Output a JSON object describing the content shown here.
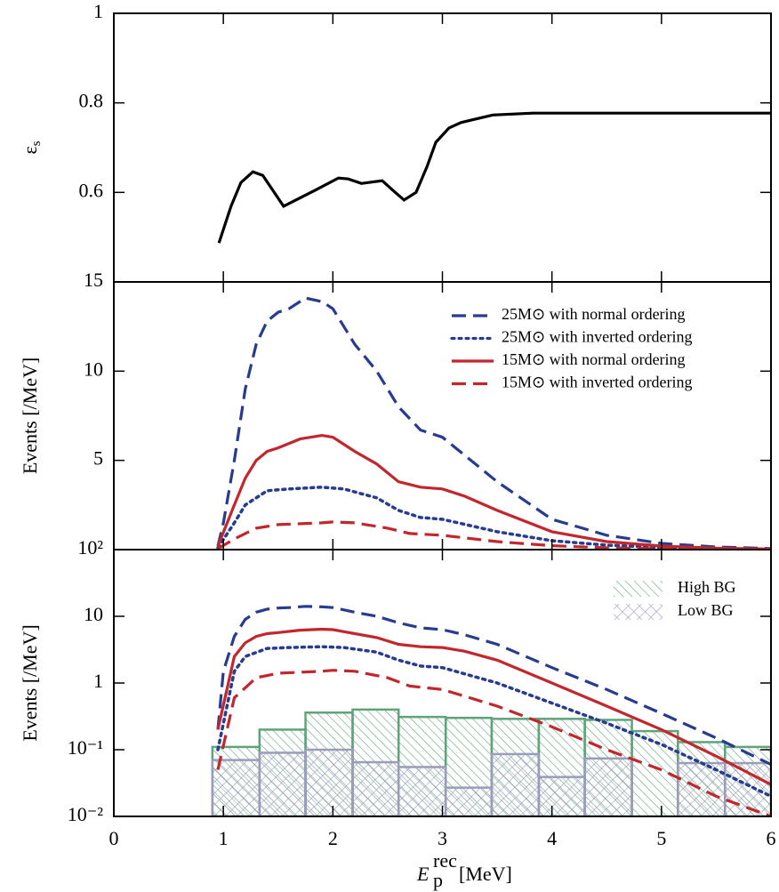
{
  "chart_data": [
    {
      "type": "line",
      "ylabel": {
        "main": "ε",
        "sub": "s"
      },
      "xlim": [
        0,
        6
      ],
      "xticks": [
        0,
        1,
        2,
        3,
        4,
        5,
        6
      ],
      "xticklabels": false,
      "ylim": [
        0.4,
        1
      ],
      "yticks": [
        0.6,
        0.8,
        1
      ],
      "series": [
        {
          "color": "#000000",
          "dash": "solid",
          "x": [
            0.96,
            1.07,
            1.16,
            1.27,
            1.36,
            1.55,
            1.84,
            2.05,
            2.14,
            2.26,
            2.45,
            2.56,
            2.65,
            2.76,
            2.86,
            2.94,
            3.06,
            3.17,
            3.27,
            3.46,
            3.83,
            4.0,
            4.5,
            5.0,
            5.5,
            6.0
          ],
          "values": [
            0.487,
            0.569,
            0.622,
            0.646,
            0.638,
            0.569,
            0.605,
            0.632,
            0.63,
            0.62,
            0.626,
            0.602,
            0.583,
            0.6,
            0.658,
            0.712,
            0.744,
            0.756,
            0.762,
            0.773,
            0.777,
            0.777,
            0.777,
            0.777,
            0.777,
            0.777
          ]
        }
      ]
    },
    {
      "type": "line",
      "ylabel": {
        "main": "Events [/MeV]"
      },
      "xlim": [
        0,
        6
      ],
      "xticks": [
        0,
        1,
        2,
        3,
        4,
        5,
        6
      ],
      "xticklabels": false,
      "ylim": [
        0,
        15
      ],
      "yticks": [
        5,
        10,
        15
      ],
      "legend": "upper right",
      "series": [
        {
          "name": "25M⊙ with normal ordering",
          "color": "#283c8f",
          "dash": "dashed",
          "x": [
            0.95,
            1.0,
            1.1,
            1.2,
            1.3,
            1.4,
            1.5,
            1.6,
            1.75,
            1.9,
            2.0,
            2.2,
            2.4,
            2.6,
            2.8,
            3.0,
            3.2,
            3.5,
            4.0,
            4.5,
            5.0,
            5.5,
            6.0
          ],
          "values": [
            0.2,
            1.5,
            5,
            9,
            11.5,
            12.8,
            13.3,
            13.5,
            14.1,
            13.9,
            13.5,
            11.5,
            10,
            8,
            6.7,
            6.3,
            5.3,
            3.8,
            1.7,
            0.8,
            0.35,
            0.15,
            0.06
          ]
        },
        {
          "name": "25M⊙ with inverted ordering",
          "color": "#283c8f",
          "dash": "dotted",
          "x": [
            0.95,
            1.1,
            1.2,
            1.4,
            1.6,
            1.9,
            2.1,
            2.4,
            2.6,
            2.8,
            3.0,
            3.5,
            4.0,
            4.5,
            5.0,
            5.5,
            6.0
          ],
          "values": [
            0.1,
            1.5,
            2.5,
            3.3,
            3.4,
            3.5,
            3.4,
            2.9,
            2.2,
            1.8,
            1.7,
            1.0,
            0.5,
            0.25,
            0.12,
            0.05,
            0.02
          ]
        },
        {
          "name": "15M⊙ with normal ordering",
          "color": "#c1272d",
          "dash": "solid",
          "x": [
            0.95,
            1.1,
            1.2,
            1.3,
            1.4,
            1.5,
            1.7,
            1.9,
            2.0,
            2.2,
            2.4,
            2.6,
            2.8,
            3.0,
            3.2,
            3.5,
            4.0,
            4.5,
            5.0,
            5.5,
            6.0
          ],
          "values": [
            0.2,
            2.5,
            4,
            5,
            5.5,
            5.7,
            6.2,
            6.4,
            6.3,
            5.5,
            4.8,
            3.8,
            3.5,
            3.4,
            3.0,
            2.2,
            1.0,
            0.45,
            0.2,
            0.08,
            0.03
          ]
        },
        {
          "name": "15M⊙ with inverted ordering",
          "color": "#c1272d",
          "dash": "dashed",
          "x": [
            0.95,
            1.1,
            1.3,
            1.5,
            1.9,
            2.0,
            2.2,
            2.5,
            2.7,
            3.0,
            3.5,
            4.0,
            4.5,
            5.0,
            5.5,
            6.0
          ],
          "values": [
            0.05,
            0.6,
            1.2,
            1.4,
            1.5,
            1.55,
            1.5,
            1.2,
            0.9,
            0.8,
            0.45,
            0.22,
            0.1,
            0.05,
            0.02,
            0.01
          ]
        }
      ]
    },
    {
      "type": "line",
      "ylabel": {
        "main": "Events [/MeV]"
      },
      "xlabel": {
        "main": "E",
        "sub": "p",
        "sup": "rec",
        "unit": "[MeV]"
      },
      "xlim": [
        0,
        6
      ],
      "xticks": [
        0,
        1,
        2,
        3,
        4,
        5,
        6
      ],
      "xticklabels": true,
      "yscale": "log",
      "ylim": [
        0.01,
        100
      ],
      "yticks": [
        {
          "value": 0.01,
          "label": "10⁻²"
        },
        {
          "value": 0.1,
          "label": "10⁻¹"
        },
        1,
        10,
        {
          "value": 100,
          "label": "10²"
        }
      ],
      "legend": "upper right",
      "series": [
        {
          "color": "#283c8f",
          "dash": "dashed",
          "x": [
            0.95,
            1.0,
            1.1,
            1.2,
            1.3,
            1.4,
            1.5,
            1.6,
            1.75,
            1.9,
            2.0,
            2.2,
            2.4,
            2.6,
            2.8,
            3.0,
            3.2,
            3.5,
            4.0,
            4.5,
            5.0,
            5.5,
            6.0
          ],
          "values": [
            0.2,
            1.5,
            5,
            9,
            11.5,
            12.8,
            13.3,
            13.5,
            14.1,
            13.9,
            13.5,
            11.5,
            10,
            8,
            6.7,
            6.3,
            5.3,
            3.8,
            1.7,
            0.8,
            0.35,
            0.15,
            0.06
          ]
        },
        {
          "color": "#283c8f",
          "dash": "dotted",
          "x": [
            0.95,
            1.1,
            1.2,
            1.4,
            1.6,
            1.9,
            2.1,
            2.4,
            2.6,
            2.8,
            3.0,
            3.5,
            4.0,
            4.5,
            5.0,
            5.5,
            6.0
          ],
          "values": [
            0.1,
            1.5,
            2.5,
            3.3,
            3.4,
            3.5,
            3.4,
            2.9,
            2.2,
            1.8,
            1.7,
            1.0,
            0.5,
            0.25,
            0.12,
            0.05,
            0.02
          ]
        },
        {
          "color": "#c1272d",
          "dash": "solid",
          "x": [
            0.95,
            1.1,
            1.2,
            1.3,
            1.4,
            1.5,
            1.7,
            1.9,
            2.0,
            2.2,
            2.4,
            2.6,
            2.8,
            3.0,
            3.2,
            3.5,
            4.0,
            4.5,
            5.0,
            5.5,
            6.0
          ],
          "values": [
            0.2,
            2.5,
            4,
            5,
            5.5,
            5.7,
            6.2,
            6.4,
            6.3,
            5.5,
            4.8,
            3.8,
            3.5,
            3.4,
            3.0,
            2.2,
            1.0,
            0.45,
            0.2,
            0.08,
            0.03
          ]
        },
        {
          "color": "#c1272d",
          "dash": "dashed",
          "x": [
            0.95,
            1.1,
            1.3,
            1.5,
            1.9,
            2.0,
            2.2,
            2.5,
            2.7,
            3.0,
            3.5,
            4.0,
            4.5,
            5.0,
            5.5,
            6.0
          ],
          "values": [
            0.05,
            0.6,
            1.2,
            1.4,
            1.5,
            1.55,
            1.5,
            1.2,
            0.9,
            0.8,
            0.45,
            0.22,
            0.1,
            0.05,
            0.02,
            0.01
          ]
        }
      ],
      "histograms": [
        {
          "name": "High BG",
          "color": "#5fa37a",
          "hatch": "diagonal",
          "bins": [
            0.9,
            1.33,
            1.75,
            2.18,
            2.6,
            3.03,
            3.45,
            3.88,
            4.3,
            4.73,
            5.15,
            5.58,
            6.0
          ],
          "counts": [
            0.11,
            0.2,
            0.36,
            0.4,
            0.31,
            0.3,
            0.29,
            0.29,
            0.28,
            0.19,
            0.13,
            0.11
          ]
        },
        {
          "name": "Low BG",
          "color": "#9b9bbb",
          "hatch": "cross",
          "bins": [
            0.9,
            1.33,
            1.75,
            2.18,
            2.6,
            3.03,
            3.45,
            3.88,
            4.3,
            4.73,
            5.15,
            5.58,
            6.0
          ],
          "counts": [
            0.07,
            0.09,
            0.1,
            0.065,
            0.055,
            0.027,
            0.086,
            0.039,
            0.074,
            0.01,
            0.063,
            0.063
          ]
        }
      ]
    }
  ]
}
